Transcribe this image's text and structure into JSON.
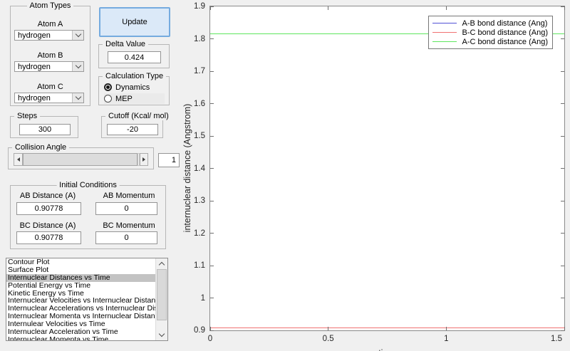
{
  "panels": {
    "atom_types": {
      "title": "Atom Types",
      "fields": [
        {
          "label": "Atom A",
          "value": "hydrogen"
        },
        {
          "label": "Atom B",
          "value": "hydrogen"
        },
        {
          "label": "Atom C",
          "value": "hydrogen"
        }
      ]
    },
    "update_label": "Update",
    "delta": {
      "title": "Delta Value",
      "value": "0.424"
    },
    "calculation_type": {
      "title": "Calculation Type",
      "options": [
        {
          "label": "Dynamics",
          "selected": true
        },
        {
          "label": "MEP",
          "selected": false
        }
      ]
    },
    "steps": {
      "title": "Steps",
      "value": "300"
    },
    "cutoff": {
      "title": "Cutoff (Kcal/ mol)",
      "value": "-20"
    },
    "collision_angle": {
      "title": "Collision Angle",
      "value": "1"
    },
    "initial_conditions": {
      "title": "Initial Conditions",
      "fields": [
        {
          "label": "AB Distance (A)",
          "value": "0.90778"
        },
        {
          "label": "AB Momentum",
          "value": "0"
        },
        {
          "label": "BC Distance (A)",
          "value": "0.90778"
        },
        {
          "label": "BC Momentum",
          "value": "0"
        }
      ]
    },
    "plot_list": {
      "selected_index": 2,
      "items": [
        "Contour Plot",
        "Surface Plot",
        "Internuclear Distances vs Time",
        "Potential Energy vs Time",
        "Kinetic Energy vs Time",
        "Internuclear Velocities vs Internuclear Distance",
        "Internuclear Accelerations vs Internuclear Distance",
        "Internuclear Momenta vs Internuclear Distance",
        "Internulear Velocities vs Time",
        "Internuclear Acceleration vs Time",
        "Internuclear Momenta vs Time"
      ]
    }
  },
  "chart_data": {
    "type": "line",
    "title": "",
    "xlabel": "time",
    "ylabel": "internuclear distance (Angstrom)",
    "xlim": [
      0,
      1.5
    ],
    "ylim": [
      0.9,
      1.9
    ],
    "grid": false,
    "legend_position": "top-right",
    "xticks": {
      "values": [
        0,
        0.5,
        1,
        1.5
      ],
      "labels": [
        "0",
        "0.5",
        "1",
        "1.5"
      ]
    },
    "yticks": {
      "values": [
        0.9,
        1.0,
        1.1,
        1.2,
        1.3,
        1.4,
        1.5,
        1.6,
        1.7,
        1.8,
        1.9
      ],
      "labels": [
        "0.9",
        "1",
        "1.1",
        "1.2",
        "1.3",
        "1.4",
        "1.5",
        "1.6",
        "1.7",
        "1.8",
        "1.9"
      ]
    },
    "series": [
      {
        "name": "A-B bond distance (Ang)",
        "color": "#5252d6",
        "constant_value": 0.90778
      },
      {
        "name": "B-C bond distance (Ang)",
        "color": "#f07272",
        "constant_value": 0.90778
      },
      {
        "name": "A-C bond distance (Ang)",
        "color": "#5ee65e",
        "constant_value": 1.81556
      }
    ]
  }
}
